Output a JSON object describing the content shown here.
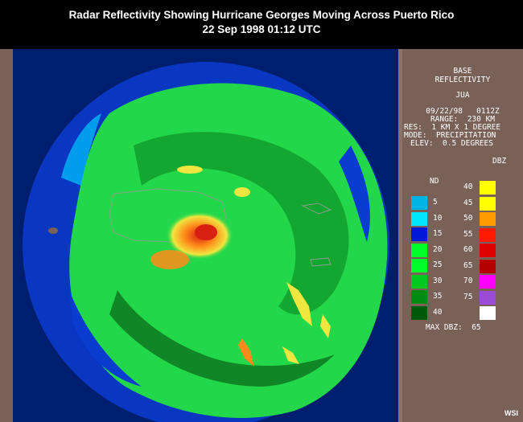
{
  "title": {
    "line1": "Radar Reflectivity Showing Hurricane Georges Moving Across Puerto Rico",
    "line2": "22 Sep 1998 01:12 UTC"
  },
  "panel": {
    "product_line1": "BASE",
    "product_line2": "REFLECTIVITY",
    "station": "JUA",
    "datetime": "09/22/98   0112Z",
    "range": "RANGE:  230 KM",
    "resolution": "RES:  1 KM X 1 DEGREE",
    "mode": "MODE:  PRECIPITATION",
    "elevation": "ELEV:  0.5 DEGREES",
    "units": "DBZ",
    "max_dbz": "MAX DBZ:  65",
    "credit": "WSI"
  },
  "legend_left": {
    "top_label": "ND",
    "items": [
      {
        "label": "5",
        "color": "#00b4e6"
      },
      {
        "label": "10",
        "color": "#00e6ff"
      },
      {
        "label": "15",
        "color": "#0018d8"
      },
      {
        "label": "20",
        "color": "#00ff2a"
      },
      {
        "label": "25",
        "color": "#00ff2a"
      },
      {
        "label": "30",
        "color": "#00c81e"
      },
      {
        "label": "35",
        "color": "#008c14"
      },
      {
        "label": "40",
        "color": "#005a0c"
      }
    ]
  },
  "legend_right": {
    "items": [
      {
        "label": "40",
        "color": "#ffff00"
      },
      {
        "label": "45",
        "color": "#ffff00"
      },
      {
        "label": "50",
        "color": "#ff9a00"
      },
      {
        "label": "55",
        "color": "#ff1a00"
      },
      {
        "label": "60",
        "color": "#e00000"
      },
      {
        "label": "65",
        "color": "#b40000"
      },
      {
        "label": "70",
        "color": "#ff00ff"
      },
      {
        "label": "75",
        "color": "#9a4cd6"
      },
      {
        "label": "",
        "color": "#ffffff"
      }
    ]
  },
  "map_colors": {
    "background": "#001e6e",
    "light_green": "#22d84a",
    "mid_green": "#109a2a",
    "dark_green": "#0a6418",
    "blue": "#0a3cd0",
    "cyan": "#00c8ff",
    "yellow": "#f0e640",
    "orange": "#ff8c1a",
    "red": "#d82010",
    "land": "#7a6158"
  }
}
